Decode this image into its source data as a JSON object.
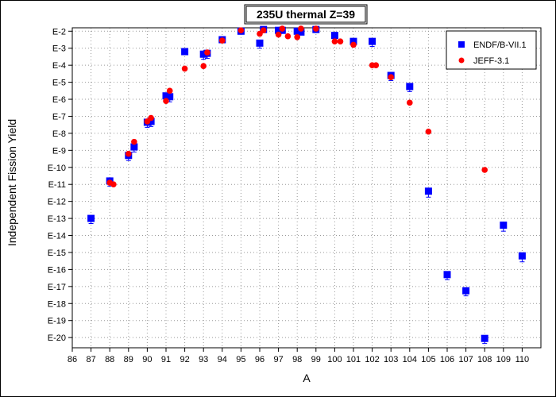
{
  "chart_data": {
    "type": "scatter",
    "title": "235U thermal Z=39",
    "xlabel": "A",
    "ylabel": "Independent Fission Yield",
    "xlim": [
      86,
      111
    ],
    "ylim_exp": [
      -20.6,
      -1.8
    ],
    "y_scale": "log",
    "x_ticks": [
      86,
      87,
      88,
      89,
      90,
      91,
      92,
      93,
      94,
      95,
      96,
      97,
      98,
      99,
      100,
      101,
      102,
      103,
      104,
      105,
      106,
      107,
      108,
      109,
      110
    ],
    "y_tick_labels": [
      "E-2",
      "E-3",
      "E-4",
      "E-5",
      "E-6",
      "E-7",
      "E-8",
      "E-9",
      "E-10",
      "E-11",
      "E-12",
      "E-13",
      "E-14",
      "E-15",
      "E-16",
      "E-17",
      "E-18",
      "E-19",
      "E-20"
    ],
    "grid": true,
    "legend_position": "top-right",
    "series": [
      {
        "name": "ENDF/B-VII.1",
        "color": "#0000ff",
        "marker": "square",
        "points": [
          {
            "x": 87,
            "exp": -13.0,
            "err": 0.3
          },
          {
            "x": 88,
            "exp": -10.8,
            "err": 0.3
          },
          {
            "x": 89,
            "exp": -9.3,
            "err": 0.3
          },
          {
            "x": 89.3,
            "exp": -8.8,
            "err": 0.3
          },
          {
            "x": 90,
            "exp": -7.35,
            "err": 0.3
          },
          {
            "x": 90.2,
            "exp": -7.3,
            "err": 0.3
          },
          {
            "x": 91,
            "exp": -5.8,
            "err": 0.3
          },
          {
            "x": 91.2,
            "exp": -5.85,
            "err": 0.3
          },
          {
            "x": 92,
            "exp": -3.2,
            "err": 0.15
          },
          {
            "x": 93,
            "exp": -3.35,
            "err": 0.3
          },
          {
            "x": 93.2,
            "exp": -3.3,
            "err": 0.3
          },
          {
            "x": 94,
            "exp": -2.5,
            "err": 0.1
          },
          {
            "x": 95,
            "exp": -2.0,
            "err": 0.1
          },
          {
            "x": 96,
            "exp": -2.7,
            "err": 0.3
          },
          {
            "x": 96.2,
            "exp": -1.9,
            "err": 0.1
          },
          {
            "x": 97,
            "exp": -1.95,
            "err": 0.1
          },
          {
            "x": 97.2,
            "exp": -1.95,
            "err": 0.1
          },
          {
            "x": 98,
            "exp": -2.0,
            "err": 0.1
          },
          {
            "x": 98.2,
            "exp": -2.05,
            "err": 0.1
          },
          {
            "x": 99,
            "exp": -1.9,
            "err": 0.1
          },
          {
            "x": 100,
            "exp": -2.25,
            "err": 0.1
          },
          {
            "x": 101,
            "exp": -2.6,
            "err": 0.3
          },
          {
            "x": 102,
            "exp": -2.6,
            "err": 0.3
          },
          {
            "x": 103,
            "exp": -4.6,
            "err": 0.3
          },
          {
            "x": 104,
            "exp": -5.25,
            "err": 0.3
          },
          {
            "x": 105,
            "exp": -11.4,
            "err": 0.35
          },
          {
            "x": 106,
            "exp": -16.3,
            "err": 0.3
          },
          {
            "x": 107,
            "exp": -17.25,
            "err": 0.3
          },
          {
            "x": 108,
            "exp": -20.05,
            "err": 0.3
          },
          {
            "x": 109,
            "exp": -13.4,
            "err": 0.35
          },
          {
            "x": 110,
            "exp": -15.2,
            "err": 0.35
          }
        ]
      },
      {
        "name": "JEFF-3.1",
        "color": "#ff0000",
        "marker": "circle",
        "points": [
          {
            "x": 88,
            "exp": -10.9
          },
          {
            "x": 88.2,
            "exp": -11.0
          },
          {
            "x": 89,
            "exp": -9.2
          },
          {
            "x": 89.3,
            "exp": -8.5
          },
          {
            "x": 90,
            "exp": -7.3
          },
          {
            "x": 90.2,
            "exp": -7.1
          },
          {
            "x": 91,
            "exp": -6.1
          },
          {
            "x": 91.2,
            "exp": -5.5
          },
          {
            "x": 92,
            "exp": -4.2
          },
          {
            "x": 93,
            "exp": -4.05
          },
          {
            "x": 93.2,
            "exp": -3.25
          },
          {
            "x": 94,
            "exp": -2.55
          },
          {
            "x": 95,
            "exp": -1.95
          },
          {
            "x": 96,
            "exp": -2.15
          },
          {
            "x": 96.2,
            "exp": -1.95
          },
          {
            "x": 97,
            "exp": -2.2
          },
          {
            "x": 97.2,
            "exp": -1.85
          },
          {
            "x": 97.5,
            "exp": -2.3
          },
          {
            "x": 98,
            "exp": -2.35
          },
          {
            "x": 98.2,
            "exp": -1.85
          },
          {
            "x": 99,
            "exp": -1.85
          },
          {
            "x": 100,
            "exp": -2.6
          },
          {
            "x": 100.3,
            "exp": -2.6
          },
          {
            "x": 101,
            "exp": -2.8
          },
          {
            "x": 102,
            "exp": -4.0
          },
          {
            "x": 102.2,
            "exp": -4.0
          },
          {
            "x": 103,
            "exp": -4.7
          },
          {
            "x": 104,
            "exp": -6.2
          },
          {
            "x": 105,
            "exp": -7.9
          },
          {
            "x": 108,
            "exp": -10.15
          }
        ]
      }
    ]
  }
}
